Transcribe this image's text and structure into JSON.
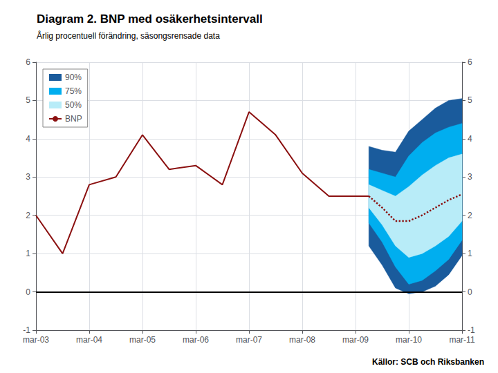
{
  "chart_data": {
    "type": "line",
    "title": "Diagram 2. BNP med osäkerhetsintervall",
    "subtitle": "Årlig procentuell förändring, säsongsrensade data",
    "annotations": [
      "Källor: SCB och Riksbanken"
    ],
    "xlim": [
      0,
      16
    ],
    "xticks": [
      {
        "value": 0,
        "label": "mar-03"
      },
      {
        "value": 2,
        "label": "mar-04"
      },
      {
        "value": 4,
        "label": "mar-05"
      },
      {
        "value": 6,
        "label": "mar-06"
      },
      {
        "value": 8,
        "label": "mar-07"
      },
      {
        "value": 10,
        "label": "mar-08"
      },
      {
        "value": 12,
        "label": "mar-09"
      },
      {
        "value": 14,
        "label": "mar-10"
      },
      {
        "value": 16,
        "label": "mar-11"
      }
    ],
    "ylim": [
      -1,
      6
    ],
    "yticks": [
      -1,
      0,
      1,
      2,
      3,
      4,
      5,
      6
    ],
    "y2lim": [
      -1,
      6
    ],
    "y2ticks": [
      -1,
      0,
      1,
      2,
      3,
      4,
      5,
      6
    ],
    "grid": true,
    "legend": "upper left",
    "series": [
      {
        "name": "90%",
        "type": "band",
        "color": "#1a5b9c",
        "x": [
          12.5,
          13.0,
          13.5,
          14.0,
          14.5,
          15.0,
          15.5,
          16.0
        ],
        "lower": [
          1.2,
          0.7,
          0.1,
          -0.05,
          0.0,
          0.15,
          0.45,
          0.95
        ],
        "upper": [
          3.8,
          3.7,
          3.65,
          4.2,
          4.5,
          4.8,
          5.0,
          5.05
        ]
      },
      {
        "name": "75%",
        "type": "band",
        "color": "#00aeef",
        "x": [
          12.5,
          13.0,
          13.5,
          14.0,
          14.5,
          15.0,
          15.5,
          16.0
        ],
        "lower": [
          1.8,
          1.3,
          0.65,
          0.2,
          0.3,
          0.55,
          0.85,
          1.35
        ],
        "upper": [
          3.2,
          3.1,
          3.0,
          3.55,
          3.9,
          4.15,
          4.3,
          4.4
        ]
      },
      {
        "name": "50%",
        "type": "band",
        "color": "#b8ecf8",
        "x": [
          12.5,
          13.0,
          13.5,
          14.0,
          14.5,
          15.0,
          15.5,
          16.0
        ],
        "lower": [
          2.2,
          1.75,
          1.2,
          0.9,
          1.0,
          1.2,
          1.45,
          1.85
        ],
        "upper": [
          2.8,
          2.65,
          2.5,
          2.75,
          3.05,
          3.3,
          3.5,
          3.6
        ]
      },
      {
        "name": "BNP",
        "type": "line",
        "color": "#8b1010",
        "line_style": "solid",
        "x": [
          0.0,
          1.0,
          2.0,
          3.0,
          4.0,
          5.0,
          6.0,
          7.0,
          8.0,
          9.0,
          10.0,
          11.0,
          12.5
        ],
        "values": [
          2.0,
          1.0,
          2.8,
          3.0,
          4.1,
          3.2,
          3.3,
          2.8,
          4.7,
          4.1,
          3.1,
          2.5,
          2.5
        ]
      },
      {
        "type": "line",
        "color": "#8b1010",
        "line_style": "dotted",
        "x": [
          12.5,
          13.0,
          13.5,
          14.0,
          14.5,
          15.0,
          15.5,
          16.0
        ],
        "values": [
          2.5,
          2.2,
          1.85,
          1.85,
          2.0,
          2.2,
          2.4,
          2.55
        ]
      }
    ],
    "reference_lines": [
      {
        "y": 0,
        "color": "#000000"
      }
    ]
  }
}
